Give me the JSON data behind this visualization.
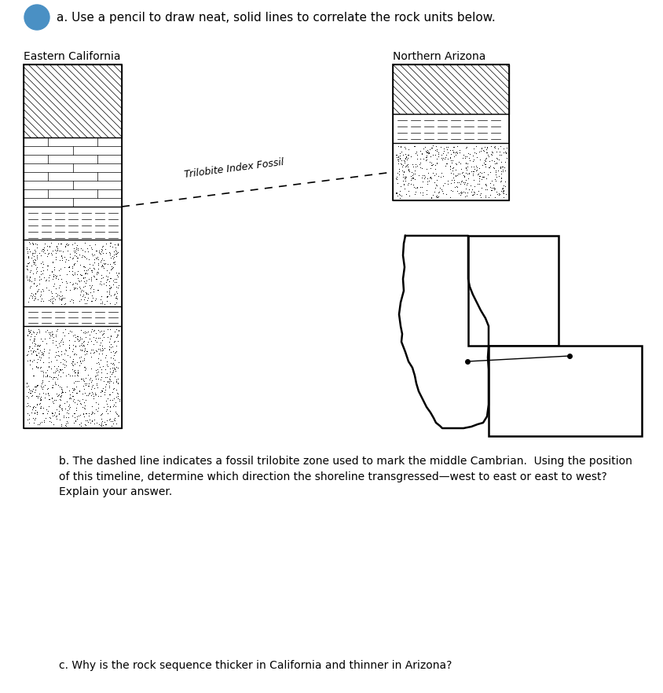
{
  "title_text": "a. Use a pencil to draw neat, solid lines to correlate the rock units below.",
  "label_ca": "Eastern California",
  "label_az": "Northern Arizona",
  "fossil_label": "Trilobite Index Fossil",
  "question_b": "b. The dashed line indicates a fossil trilobite zone used to mark the middle Cambrian.  Using the position\nof this timeline, determine which direction the shoreline transgressed—west to east or east to west?\nExplain your answer.",
  "question_c": "c. Why is the rock sequence thicker in California and thinner in Arizona?",
  "bg_color": "#ffffff",
  "icon_color": "#4a90c4"
}
